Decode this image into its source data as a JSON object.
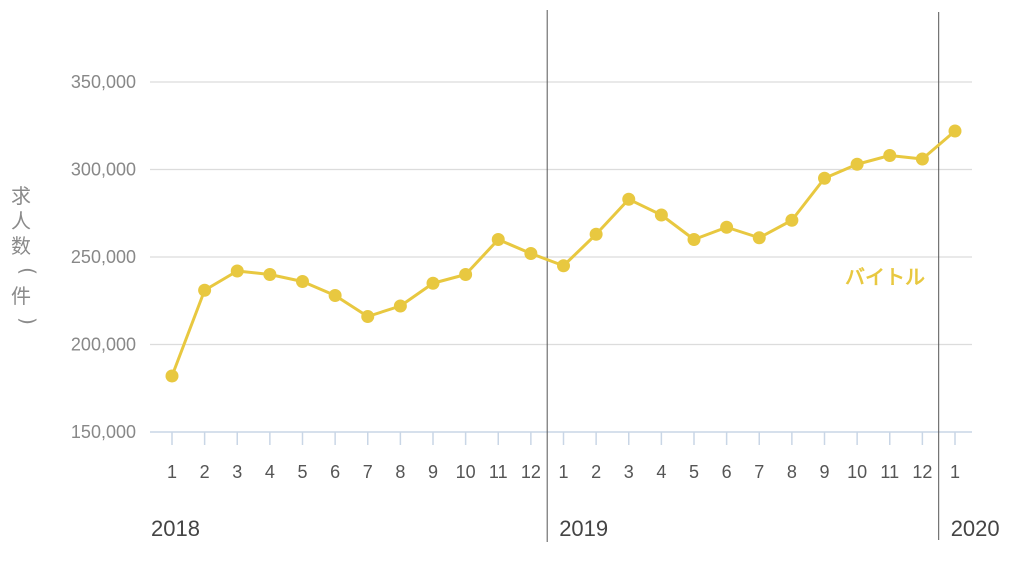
{
  "chart_data": {
    "type": "line",
    "title": "",
    "ylabel": "求人数（件）",
    "xlabel": "",
    "ylim": [
      150000,
      350000
    ],
    "y_ticks": [
      150000,
      200000,
      250000,
      300000,
      350000
    ],
    "y_tick_labels": [
      "150,000",
      "200,000",
      "250,000",
      "300,000",
      "350,000"
    ],
    "grid": true,
    "x": [
      "2018-1",
      "2018-2",
      "2018-3",
      "2018-4",
      "2018-5",
      "2018-6",
      "2018-7",
      "2018-8",
      "2018-9",
      "2018-10",
      "2018-11",
      "2018-12",
      "2019-1",
      "2019-2",
      "2019-3",
      "2019-4",
      "2019-5",
      "2019-6",
      "2019-7",
      "2019-8",
      "2019-9",
      "2019-10",
      "2019-11",
      "2019-12",
      "2020-1"
    ],
    "x_tick_labels": [
      "1",
      "2",
      "3",
      "4",
      "5",
      "6",
      "7",
      "8",
      "9",
      "10",
      "11",
      "12",
      "1",
      "2",
      "3",
      "4",
      "5",
      "6",
      "7",
      "8",
      "9",
      "10",
      "11",
      "12",
      "1"
    ],
    "year_labels": [
      "2018",
      "2019",
      "2020"
    ],
    "series": [
      {
        "name": "バイトル",
        "color": "#E8C840",
        "values": [
          182000,
          231000,
          242000,
          240000,
          236000,
          228000,
          216000,
          222000,
          235000,
          240000,
          260000,
          252000,
          245000,
          263000,
          283000,
          274000,
          260000,
          267000,
          261000,
          271000,
          295000,
          303000,
          308000,
          306000,
          322000
        ]
      }
    ]
  }
}
